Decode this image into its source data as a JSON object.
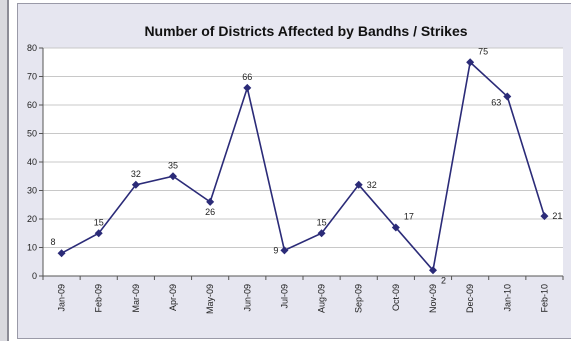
{
  "chart_data": {
    "type": "line",
    "title": "Number of Districts Affected by Bandhs / Strikes",
    "categories": [
      "Jan-09",
      "Feb-09",
      "Mar-09",
      "Apr-09",
      "May-09",
      "Jun-09",
      "Jul-09",
      "Aug-09",
      "Sep-09",
      "Oct-09",
      "Nov-09",
      "Dec-09",
      "Jan-10",
      "Feb-10"
    ],
    "series": [
      {
        "values": [
          8,
          15,
          32,
          35,
          26,
          66,
          9,
          15,
          32,
          17,
          2,
          75,
          63,
          21
        ]
      }
    ],
    "data_labels": [
      "8",
      "15",
      "32",
      "35",
      "26",
      "66",
      "9",
      "15",
      "32",
      "17",
      "2",
      "75",
      "63",
      "21"
    ],
    "ylim": [
      0,
      80
    ],
    "yticks": [
      0,
      10,
      20,
      30,
      40,
      50,
      60,
      70,
      80
    ],
    "xlabel": "",
    "ylabel": "",
    "grid": true,
    "legend": "none",
    "colors": {
      "line": "#2b2b78",
      "marker": "#2b2b78",
      "plot_background": "#ffffff",
      "chart_background": "#e6e6f0",
      "grid": "#c8c8c8"
    }
  }
}
